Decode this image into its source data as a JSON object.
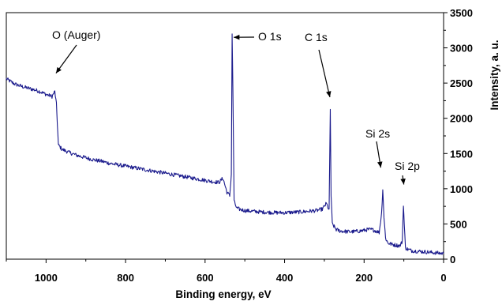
{
  "chart_data": {
    "type": "line",
    "xlabel": "Binding energy, eV",
    "ylabel": "Intensity, a. u.",
    "xlim": [
      1100,
      0
    ],
    "ylim": [
      0,
      3500
    ],
    "x_ticks": [
      1000,
      800,
      600,
      400,
      200,
      0
    ],
    "y_ticks": [
      0,
      500,
      1000,
      1500,
      2000,
      2500,
      3000,
      3500
    ],
    "y_axis_side": "right",
    "x_axis_reversed": true,
    "grid": false,
    "line_color": "#1a1a8c",
    "series": [
      {
        "points": [
          [
            1100,
            2560
          ],
          [
            1080,
            2490
          ],
          [
            1060,
            2450
          ],
          [
            1040,
            2420
          ],
          [
            1020,
            2390
          ],
          [
            1000,
            2340
          ],
          [
            985,
            2310
          ],
          [
            978,
            2380
          ],
          [
            974,
            2200
          ],
          [
            969,
            1620
          ],
          [
            960,
            1560
          ],
          [
            940,
            1510
          ],
          [
            920,
            1470
          ],
          [
            900,
            1440
          ],
          [
            880,
            1410
          ],
          [
            860,
            1390
          ],
          [
            840,
            1360
          ],
          [
            820,
            1340
          ],
          [
            800,
            1320
          ],
          [
            780,
            1300
          ],
          [
            760,
            1280
          ],
          [
            740,
            1260
          ],
          [
            720,
            1240
          ],
          [
            700,
            1220
          ],
          [
            680,
            1200
          ],
          [
            660,
            1180
          ],
          [
            640,
            1160
          ],
          [
            620,
            1140
          ],
          [
            600,
            1120
          ],
          [
            580,
            1100
          ],
          [
            565,
            1090
          ],
          [
            555,
            1150
          ],
          [
            545,
            950
          ],
          [
            538,
            900
          ],
          [
            534,
            1200
          ],
          [
            532,
            3200
          ],
          [
            530,
            2400
          ],
          [
            527,
            820
          ],
          [
            520,
            720
          ],
          [
            500,
            690
          ],
          [
            480,
            680
          ],
          [
            460,
            670
          ],
          [
            440,
            665
          ],
          [
            420,
            660
          ],
          [
            400,
            660
          ],
          [
            380,
            665
          ],
          [
            360,
            670
          ],
          [
            340,
            680
          ],
          [
            320,
            690
          ],
          [
            305,
            710
          ],
          [
            295,
            790
          ],
          [
            288,
            700
          ],
          [
            285,
            2120
          ],
          [
            283,
            900
          ],
          [
            280,
            500
          ],
          [
            270,
            420
          ],
          [
            260,
            400
          ],
          [
            250,
            395
          ],
          [
            240,
            390
          ],
          [
            230,
            390
          ],
          [
            220,
            395
          ],
          [
            210,
            400
          ],
          [
            200,
            410
          ],
          [
            190,
            420
          ],
          [
            180,
            420
          ],
          [
            170,
            400
          ],
          [
            162,
            380
          ],
          [
            156,
            650
          ],
          [
            153,
            1000
          ],
          [
            150,
            600
          ],
          [
            146,
            300
          ],
          [
            140,
            230
          ],
          [
            130,
            210
          ],
          [
            120,
            200
          ],
          [
            110,
            190
          ],
          [
            104,
            250
          ],
          [
            101,
            780
          ],
          [
            99,
            500
          ],
          [
            96,
            160
          ],
          [
            90,
            140
          ],
          [
            80,
            120
          ],
          [
            60,
            110
          ],
          [
            40,
            100
          ],
          [
            20,
            90
          ],
          [
            0,
            80
          ]
        ]
      }
    ],
    "annotations": [
      {
        "text": "O (Auger)",
        "arrow_to": [
          975,
          2640
        ]
      },
      {
        "text": "O 1s",
        "arrow_to": [
          528,
          3150
        ]
      },
      {
        "text": "C 1s",
        "arrow_to": [
          286,
          2300
        ]
      },
      {
        "text": "Si 2s",
        "arrow_to": [
          158,
          1300
        ]
      },
      {
        "text": "Si 2p",
        "arrow_to": [
          100,
          1060
        ]
      }
    ]
  }
}
